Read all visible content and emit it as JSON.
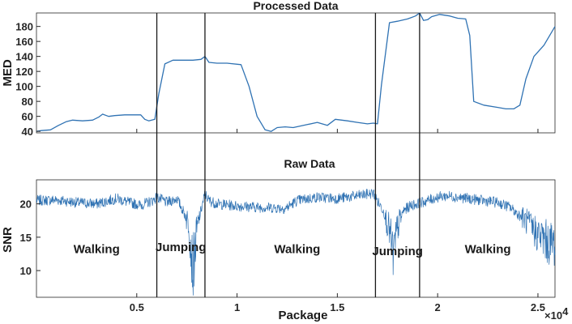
{
  "chart_data": [
    {
      "type": "line",
      "title": "Processed Data",
      "xlabel": "",
      "ylabel": "MED",
      "xlim": [
        0,
        25850
      ],
      "ylim": [
        38,
        198
      ],
      "xticks": [
        0.5,
        1,
        1.5,
        2,
        2.5
      ],
      "yticks": [
        40,
        60,
        80,
        100,
        120,
        140,
        160,
        180
      ],
      "grid": false,
      "color": "#2f72b3",
      "series": [
        {
          "x": [
            0,
            250,
            700,
            1100,
            1500,
            1800,
            2300,
            2800,
            3100,
            3300,
            3600,
            3900,
            4400,
            4900,
            5200,
            5400,
            5600,
            5900,
            6100,
            6400,
            6800,
            7200,
            7800,
            8200,
            8400,
            8600,
            9000,
            9500,
            10200,
            10600,
            11000,
            11400,
            11700,
            12000,
            12400,
            12800,
            13500,
            14000,
            14500,
            14900,
            15500,
            16000,
            16500,
            16800,
            17000,
            17200,
            17600,
            18000,
            18500,
            18900,
            19100,
            19300,
            19500,
            19700,
            20100,
            20600,
            21000,
            21400,
            21600,
            21800,
            22300,
            23000,
            23400,
            23800,
            24100,
            24400,
            24800,
            25300,
            25850
          ],
          "y": [
            40,
            41,
            42,
            48,
            53,
            55,
            54,
            55,
            59,
            63,
            60,
            61,
            62,
            62,
            62,
            56,
            54,
            56,
            90,
            130,
            135,
            135,
            135,
            136,
            140,
            132,
            131,
            131,
            129,
            100,
            60,
            42,
            40,
            45,
            46,
            45,
            49,
            52,
            48,
            56,
            54,
            52,
            50,
            51,
            50,
            102,
            185,
            187,
            190,
            194,
            198,
            188,
            189,
            193,
            196,
            194,
            191,
            190,
            168,
            80,
            75,
            72,
            70,
            70,
            75,
            110,
            140,
            155,
            180
          ]
        }
      ]
    },
    {
      "type": "line",
      "title": "Raw Data",
      "xlabel": "Package",
      "ylabel": "SNR",
      "xlim": [
        0,
        25850
      ],
      "ylim": [
        6,
        23.6
      ],
      "xticks": [
        0.5,
        1,
        1.5,
        2,
        2.5
      ],
      "xticks_multiplier": "×10^4",
      "yticks": [
        10,
        15,
        20
      ],
      "grid": false,
      "color": "#2f72b3",
      "series": [
        {
          "x": [
            0,
            1000,
            2000,
            3000,
            4000,
            4500,
            5200,
            5800,
            6000,
            6500,
            7000,
            7300,
            7600,
            7800,
            8000,
            8200,
            8400,
            8600,
            9000,
            10000,
            11000,
            12000,
            12400,
            13000,
            14000,
            15000,
            16000,
            16800,
            17000,
            17300,
            17600,
            17800,
            18000,
            18300,
            18700,
            19000,
            19500,
            20000,
            20500,
            21000,
            22000,
            23000,
            23600,
            24000,
            24400,
            24800,
            25200,
            25500,
            25850
          ],
          "y": [
            20.5,
            20.6,
            20.2,
            20.0,
            20.8,
            20.3,
            19.8,
            20.5,
            21.0,
            20.2,
            20.8,
            19.0,
            17.0,
            10.0,
            16.0,
            19.0,
            21.5,
            20.5,
            20.0,
            19.7,
            19.5,
            19.4,
            19.3,
            20.5,
            21.0,
            20.8,
            21.2,
            21.6,
            20.4,
            19.0,
            16.0,
            12.0,
            16.5,
            19.0,
            19.8,
            20.0,
            20.5,
            21.0,
            21.2,
            21.0,
            20.6,
            20.2,
            19.5,
            18.5,
            17.5,
            16.0,
            15.0,
            14.2,
            14.0
          ]
        }
      ]
    }
  ],
  "dividers_x": [
    6000,
    8400,
    16900,
    19100
  ],
  "activity_labels": [
    {
      "text": "Walking",
      "x": 3000,
      "y": 12.6
    },
    {
      "text": "Jumping",
      "x": 7200,
      "y": 12.9
    },
    {
      "text": "Walking",
      "x": 13000,
      "y": 12.6
    },
    {
      "text": "Jumping",
      "x": 18000,
      "y": 12.3
    },
    {
      "text": "Walking",
      "x": 22500,
      "y": 12.6
    }
  ]
}
